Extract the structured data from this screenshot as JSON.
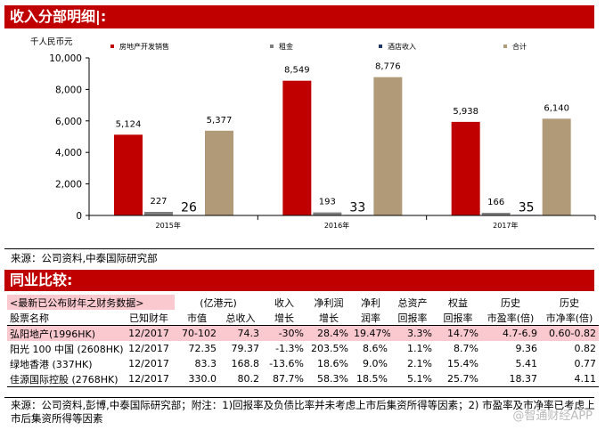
{
  "section1_title": "收入分部明细|:",
  "section2_title": "同业比较:",
  "chart_data": {
    "type": "bar",
    "ylabel": "千人民币元",
    "ylim": [
      0,
      10000
    ],
    "yticks": [
      "0",
      "2,000",
      "4,000",
      "6,000",
      "8,000",
      "10,000"
    ],
    "categories": [
      "2015年",
      "2016年",
      "2017年"
    ],
    "series": [
      {
        "name": "房地产开发销售",
        "color": "#c00000",
        "values": [
          5124,
          8549,
          5938
        ],
        "labels": [
          "5,124",
          "8,549",
          "5,938"
        ]
      },
      {
        "name": "租金",
        "color": "#7f7f7f",
        "values": [
          227,
          193,
          166
        ],
        "labels": [
          "227",
          "193",
          "166"
        ]
      },
      {
        "name": "酒店收入",
        "color": "#1f3864",
        "values": [
          26,
          33,
          35
        ],
        "labels": [
          "26",
          "33",
          "35"
        ]
      },
      {
        "name": "合计",
        "color": "#b09a78",
        "values": [
          5377,
          8776,
          6140
        ],
        "labels": [
          "5,377",
          "8,776",
          "6,140"
        ]
      }
    ]
  },
  "source1": "来源：公司资料,中泰国际研究部",
  "table": {
    "header1": [
      "<最新已公布财年之财务数据>",
      "(亿港元)",
      "收入",
      "净利润",
      "净利",
      "总资产",
      "权益",
      "历史",
      "历史"
    ],
    "header2": [
      "股票名称",
      "已知财年",
      "市值",
      "总收入",
      "增长",
      "增长",
      "润率",
      "回报率",
      "回报率",
      "市盈率(倍)",
      "市净率(倍)"
    ],
    "rows": [
      [
        "弘阳地产(1996HK)",
        "12/2017",
        "70-102",
        "74.3",
        "-30%",
        "28.4%",
        "19.47%",
        "3.3%",
        "14.7%",
        "4.7-6.9",
        "0.60-0.82"
      ],
      [
        "阳光 100 中国 (2608HK)",
        "12/2017",
        "72.35",
        "79.37",
        "-1.3%",
        "203.5%",
        "8.6%",
        "1.1%",
        "8.7%",
        "9.36",
        "0.82"
      ],
      [
        "绿地香港 (337HK)",
        "12/2017",
        "83.3",
        "168.8",
        "-13.6%",
        "18.6%",
        "9.0%",
        "2.1%",
        "15.4%",
        "5.41",
        "0.77"
      ],
      [
        "佳源国际控股 (2768HK)",
        "12/2017",
        "330.0",
        "80.2",
        "87.7%",
        "58.3%",
        "18.5%",
        "5.1%",
        "25.7%",
        "18.37",
        "4.11"
      ]
    ]
  },
  "source2": "来源：公司资料,彭博,中泰国际研究部；附注：1)回报率及负债比率并未考虑上市后集资所得等因素；2) 市盈率及市净率已考虑上市后集资所得等因素",
  "watermark": "@智通财经APP"
}
